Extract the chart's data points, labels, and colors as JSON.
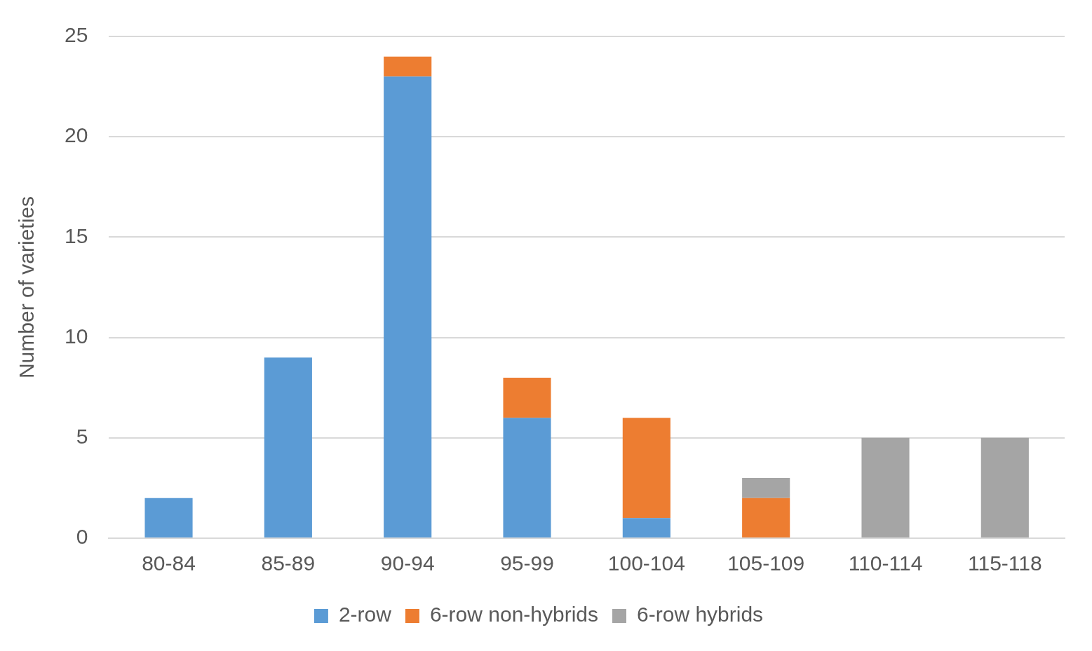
{
  "chart_data": {
    "type": "bar",
    "stacked": true,
    "ylabel": "Number of varieties",
    "categories": [
      "80-84",
      "85-89",
      "90-94",
      "95-99",
      "100-104",
      "105-109",
      "110-114",
      "115-118"
    ],
    "series": [
      {
        "name": "2-row",
        "color": "#5b9bd5",
        "values": [
          2,
          9,
          23,
          6,
          1,
          null,
          null,
          null
        ]
      },
      {
        "name": "6-row non-hybrids",
        "color": "#ed7d31",
        "values": [
          null,
          null,
          1,
          2,
          5,
          2,
          null,
          null
        ]
      },
      {
        "name": "6-row hybrids",
        "color": "#a5a5a5",
        "values": [
          null,
          null,
          null,
          null,
          null,
          1,
          5,
          5
        ]
      }
    ],
    "ylim": [
      0,
      25
    ],
    "yticks": [
      0,
      5,
      10,
      15,
      20,
      25
    ],
    "grid": "y",
    "legend": "bottom"
  }
}
